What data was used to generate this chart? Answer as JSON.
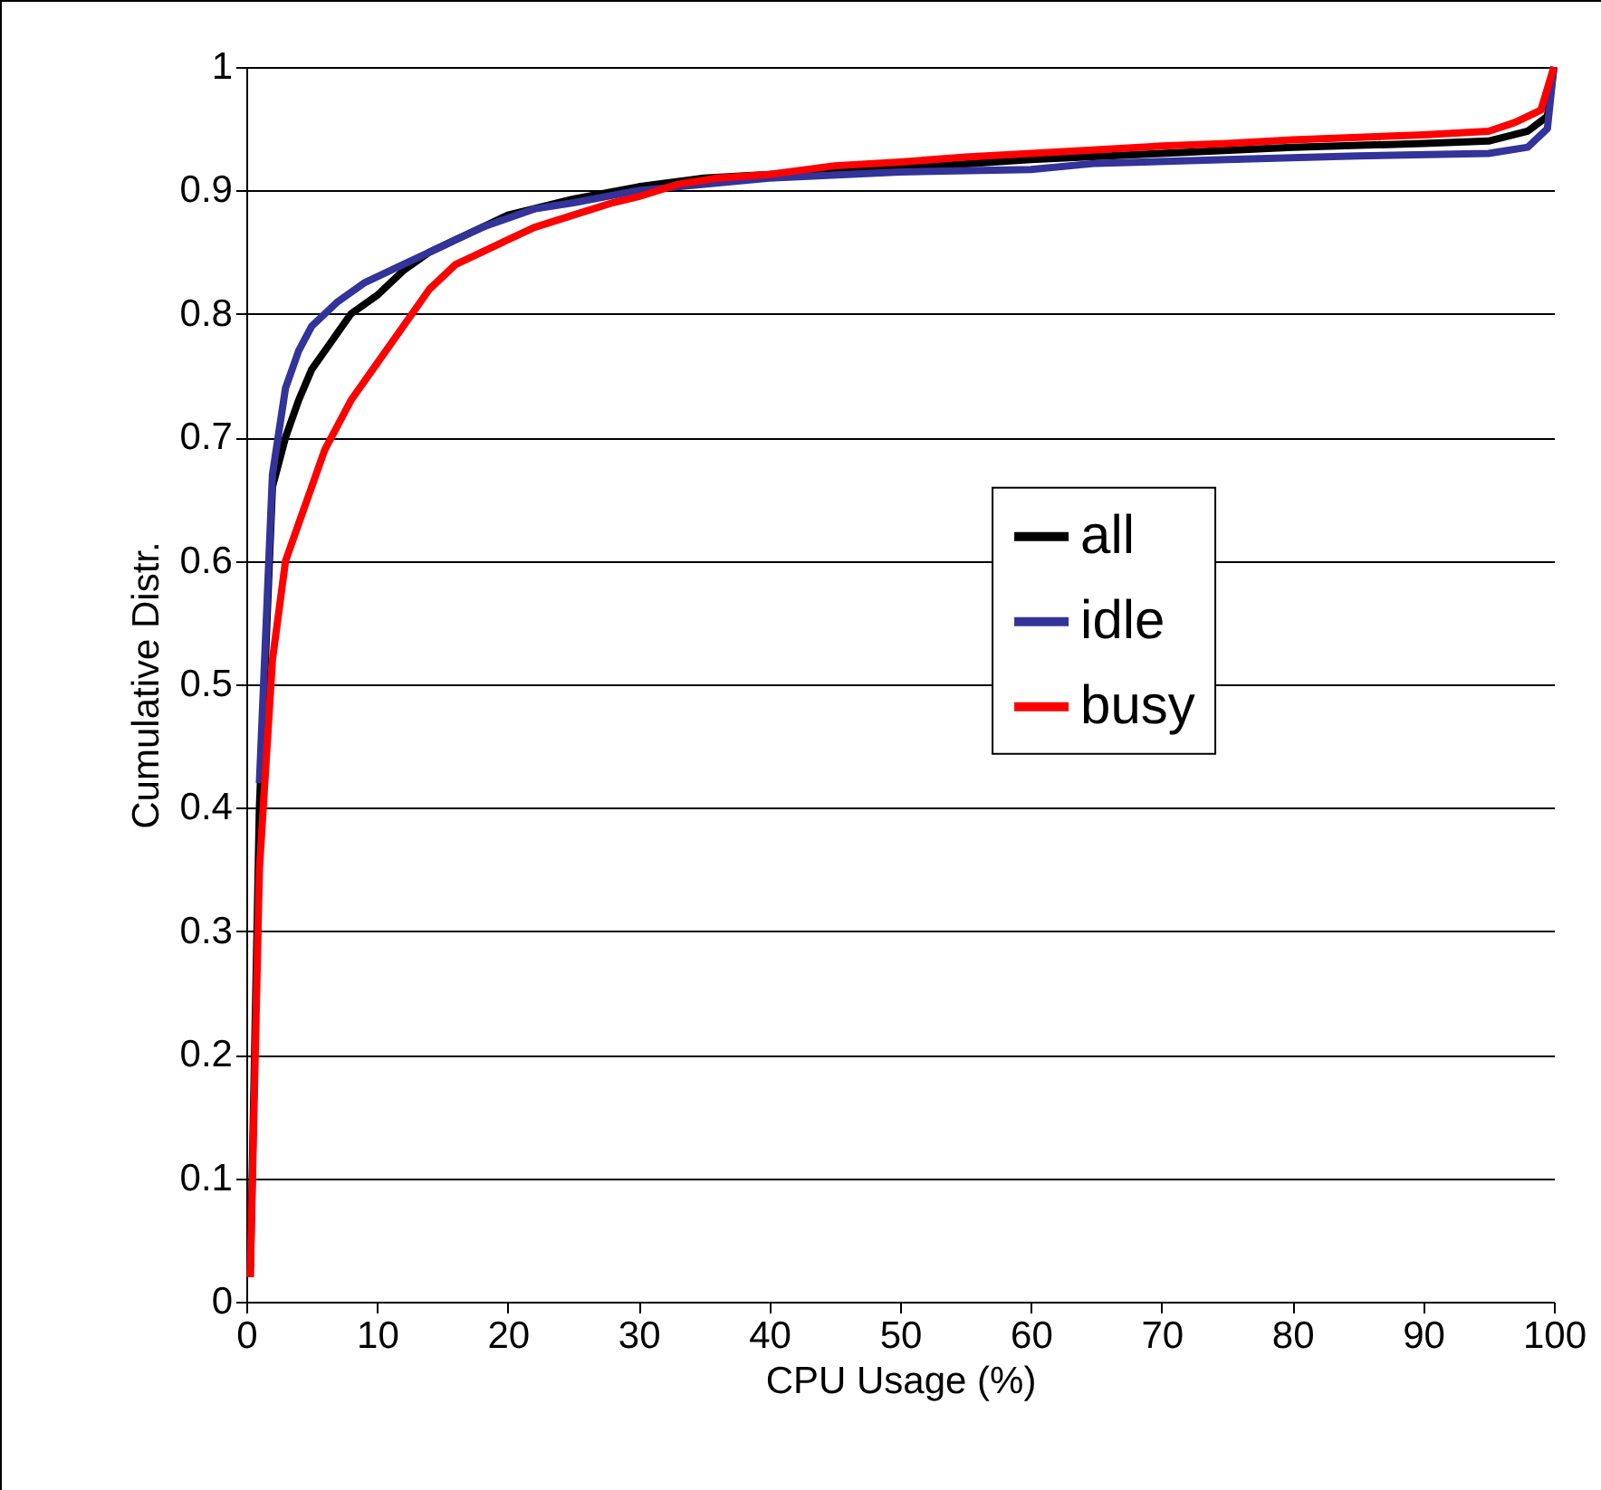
{
  "chart_data": {
    "type": "line",
    "xlabel": "CPU Usage (%)",
    "ylabel": "Cumulative Distr.",
    "xlim": [
      0,
      100
    ],
    "xticks": [
      0,
      10,
      20,
      30,
      40,
      50,
      60,
      70,
      80,
      90,
      100
    ],
    "ylim": [
      0,
      1
    ],
    "yticks": [
      0,
      0.1,
      0.2,
      0.3,
      0.4,
      0.5,
      0.6,
      0.7,
      0.8,
      0.9,
      1
    ],
    "grid": "y",
    "legend": "right",
    "marker": "none",
    "line_style": "solid",
    "series": [
      {
        "name": "all",
        "color": "#000000",
        "x": [
          0.3,
          1,
          2,
          3,
          4,
          5,
          6,
          8,
          10,
          12,
          14,
          16,
          18,
          20,
          25,
          30,
          35,
          40,
          50,
          60,
          70,
          80,
          90,
          95,
          98,
          99.5,
          100
        ],
        "values": [
          0.02,
          0.4,
          0.66,
          0.7,
          0.73,
          0.755,
          0.77,
          0.8,
          0.815,
          0.835,
          0.85,
          0.86,
          0.87,
          0.88,
          0.893,
          0.903,
          0.91,
          0.913,
          0.918,
          0.925,
          0.93,
          0.935,
          0.938,
          0.94,
          0.948,
          0.96,
          1
        ]
      },
      {
        "name": "idle",
        "color": "#333399",
        "x": [
          1,
          2,
          3,
          4,
          5,
          7,
          9,
          12,
          15,
          18,
          22,
          25,
          30,
          35,
          40,
          50,
          60,
          65,
          75,
          85,
          95,
          98,
          99.5,
          100
        ],
        "values": [
          0.42,
          0.67,
          0.74,
          0.77,
          0.79,
          0.81,
          0.825,
          0.84,
          0.855,
          0.87,
          0.885,
          0.89,
          0.9,
          0.905,
          0.91,
          0.915,
          0.917,
          0.922,
          0.925,
          0.928,
          0.93,
          0.935,
          0.95,
          1
        ]
      },
      {
        "name": "busy",
        "color": "#ff0000",
        "x": [
          0.3,
          1,
          2,
          3,
          4,
          5,
          6,
          8,
          10,
          12,
          14,
          16,
          18,
          20,
          22,
          25,
          28,
          30,
          33,
          36,
          40,
          45,
          50,
          55,
          60,
          65,
          70,
          75,
          80,
          85,
          90,
          95,
          97,
          99,
          100
        ],
        "values": [
          0.02,
          0.35,
          0.52,
          0.6,
          0.63,
          0.66,
          0.69,
          0.73,
          0.76,
          0.79,
          0.82,
          0.84,
          0.85,
          0.86,
          0.87,
          0.88,
          0.89,
          0.895,
          0.905,
          0.91,
          0.913,
          0.92,
          0.923,
          0.927,
          0.93,
          0.933,
          0.936,
          0.938,
          0.941,
          0.943,
          0.945,
          0.948,
          0.955,
          0.965,
          1
        ]
      }
    ]
  }
}
